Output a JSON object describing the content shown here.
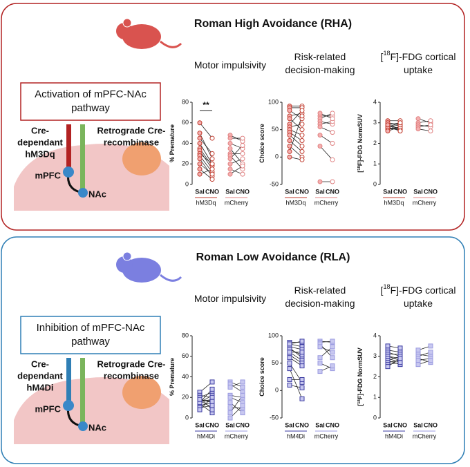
{
  "panels": [
    {
      "title": "Roman High Avoidance (RHA)",
      "color": "#b22222",
      "animal_color": "#d9534f",
      "marker": "circle",
      "box": [
        "Activation of mPFC-NAc",
        "pathway"
      ],
      "cre": [
        "Cre-",
        "dependant",
        "hM3Dq"
      ],
      "retro": [
        "Retrograde Cre-",
        "recombinase"
      ],
      "mpfc": "mPFC",
      "nac": "NAc",
      "charts": [
        {
          "title": [
            [
              {
                "text": "Motor impulsivity"
              }
            ]
          ],
          "ylabel": [
            {
              "text": "% Premature"
            }
          ],
          "ylim": [
            0,
            80
          ],
          "yticks": [
            0,
            20,
            40,
            60,
            80
          ],
          "conditions": [
            "Sal",
            "CNO"
          ],
          "groups": [
            {
              "name": "hM3Dq",
              "color": "#c0392b",
              "annotation": "**",
              "sal": [
                60,
                50,
                40,
                35,
                33,
                30,
                28,
                25,
                20,
                15,
                10,
                45
              ],
              "cno": [
                45,
                25,
                20,
                18,
                15,
                20,
                12,
                8,
                10,
                5,
                15,
                30
              ]
            },
            {
              "name": "mCherry",
              "color": "#e08080",
              "sal": [
                48,
                45,
                40,
                35,
                30,
                28,
                25,
                20,
                15,
                10
              ],
              "cno": [
                42,
                45,
                35,
                20,
                30,
                15,
                38,
                25,
                10,
                18
              ]
            }
          ]
        },
        {
          "title": [
            [
              {
                "text": "Risk-related"
              }
            ],
            [
              {
                "text": "decision-making"
              }
            ]
          ],
          "ylabel": [
            {
              "text": "Choice score"
            }
          ],
          "ylim": [
            -50,
            100
          ],
          "yticks": [
            -50,
            0,
            50,
            100
          ],
          "conditions": [
            "Sal",
            "CNO"
          ],
          "groups": [
            {
              "name": "hM3Dq",
              "color": "#c0392b",
              "sal": [
                93,
                90,
                85,
                75,
                70,
                60,
                55,
                50,
                45,
                40,
                30,
                20,
                10,
                0
              ],
              "cno": [
                93,
                90,
                70,
                80,
                50,
                85,
                60,
                40,
                30,
                20,
                10,
                0,
                75,
                -5
              ]
            },
            {
              "name": "mCherry",
              "color": "#e08080",
              "sal": [
                75,
                70,
                65,
                60,
                55,
                40,
                20,
                -45,
                80
              ],
              "cno": [
                75,
                80,
                60,
                65,
                45,
                25,
                -5,
                -45,
                70
              ]
            }
          ]
        },
        {
          "title": [
            [
              {
                "text": "["
              },
              {
                "text": "18",
                "sup": true
              },
              {
                "text": "F]-FDG cortical"
              }
            ],
            [
              {
                "text": "uptake"
              }
            ]
          ],
          "ylabel": [
            {
              "text": "["
            },
            {
              "text": "18",
              "sup": true
            },
            {
              "text": "F]-FDG NormSUV"
            }
          ],
          "ylim": [
            0,
            4
          ],
          "yticks": [
            0,
            1,
            2,
            3,
            4
          ],
          "conditions": [
            "Sal",
            "CNO"
          ],
          "groups": [
            {
              "name": "hM3Dq",
              "color": "#c0392b",
              "sal": [
                3.1,
                3.0,
                2.9,
                2.9,
                2.8,
                2.8,
                2.7,
                2.7,
                2.6,
                3.0,
                2.8,
                2.9
              ],
              "cno": [
                3.1,
                2.9,
                3.0,
                2.7,
                2.9,
                2.6,
                2.8,
                2.7,
                2.8,
                2.9,
                3.0,
                2.6
              ]
            },
            {
              "name": "mCherry",
              "color": "#e08080",
              "sal": [
                3.2,
                3.0,
                2.9,
                2.8,
                2.7
              ],
              "cno": [
                3.0,
                3.1,
                2.8,
                2.9,
                2.6
              ]
            }
          ]
        }
      ]
    },
    {
      "title": "Roman Low Avoidance (RLA)",
      "color": "#2f7fb5",
      "animal_color": "#7b7fe0",
      "marker": "square",
      "box": [
        "Inhibition of mPFC-NAc",
        "pathway"
      ],
      "cre": [
        "Cre-",
        "dependant",
        "hM4Di"
      ],
      "retro": [
        "Retrograde Cre-",
        "recombinase"
      ],
      "mpfc": "mPFC",
      "nac": "NAc",
      "charts": [
        {
          "title": [
            [
              {
                "text": "Motor impulsivity"
              }
            ]
          ],
          "ylabel": [
            {
              "text": "% Premature"
            }
          ],
          "ylim": [
            0,
            80
          ],
          "yticks": [
            0,
            20,
            40,
            60,
            80
          ],
          "conditions": [
            "Sal",
            "CNO"
          ],
          "groups": [
            {
              "name": "hM4Di",
              "color": "#3a3aa0",
              "sal": [
                25,
                22,
                20,
                18,
                17,
                16,
                15,
                14,
                12,
                10,
                8,
                20,
                15,
                18
              ],
              "cno": [
                35,
                20,
                25,
                15,
                10,
                18,
                22,
                5,
                15,
                12,
                20,
                8,
                28,
                16
              ]
            },
            {
              "name": "mCherry",
              "color": "#9a9ae0",
              "sal": [
                35,
                33,
                30,
                22,
                20,
                15,
                10,
                5,
                0
              ],
              "cno": [
                30,
                25,
                35,
                20,
                15,
                5,
                10,
                22,
                12
              ]
            }
          ]
        },
        {
          "title": [
            [
              {
                "text": "Risk-related"
              }
            ],
            [
              {
                "text": "decision-making"
              }
            ]
          ],
          "ylabel": [
            {
              "text": "Choice score"
            }
          ],
          "ylim": [
            -50,
            100
          ],
          "yticks": [
            -50,
            0,
            50,
            100
          ],
          "conditions": [
            "Sal",
            "CNO"
          ],
          "groups": [
            {
              "name": "hM4Di",
              "color": "#3a3aa0",
              "sal": [
                88,
                85,
                80,
                78,
                75,
                70,
                65,
                60,
                50,
                40,
                20,
                10,
                85,
                70
              ],
              "cno": [
                88,
                80,
                75,
                60,
                65,
                55,
                50,
                45,
                15,
                -15,
                20,
                5,
                90,
                70
              ]
            },
            {
              "name": "mCherry",
              "color": "#9a9ae0",
              "sal": [
                90,
                88,
                85,
                80,
                60,
                50,
                35
              ],
              "cno": [
                88,
                90,
                60,
                70,
                80,
                40,
                45
              ]
            }
          ]
        },
        {
          "title": [
            [
              {
                "text": "["
              },
              {
                "text": "18",
                "sup": true
              },
              {
                "text": "F]-FDG cortical"
              }
            ],
            [
              {
                "text": "uptake"
              }
            ]
          ],
          "ylabel": [
            {
              "text": "["
            },
            {
              "text": "18",
              "sup": true
            },
            {
              "text": "F]-FDG NormSUV"
            }
          ],
          "ylim": [
            0,
            4
          ],
          "yticks": [
            0,
            1,
            2,
            3,
            4
          ],
          "conditions": [
            "Sal",
            "CNO"
          ],
          "groups": [
            {
              "name": "hM4Di",
              "color": "#3a3aa0",
              "sal": [
                3.5,
                3.3,
                3.2,
                3.1,
                3.0,
                3.0,
                2.9,
                2.8,
                2.8,
                2.7,
                2.6,
                2.5
              ],
              "cno": [
                3.4,
                3.2,
                3.0,
                3.1,
                2.9,
                2.8,
                2.7,
                3.0,
                2.6,
                2.8,
                2.7,
                2.9
              ]
            },
            {
              "name": "mCherry",
              "color": "#9a9ae0",
              "sal": [
                3.3,
                3.1,
                3.0,
                2.9,
                2.8,
                2.6
              ],
              "cno": [
                3.5,
                3.0,
                3.2,
                2.7,
                2.9,
                2.8
              ]
            }
          ]
        }
      ]
    }
  ]
}
